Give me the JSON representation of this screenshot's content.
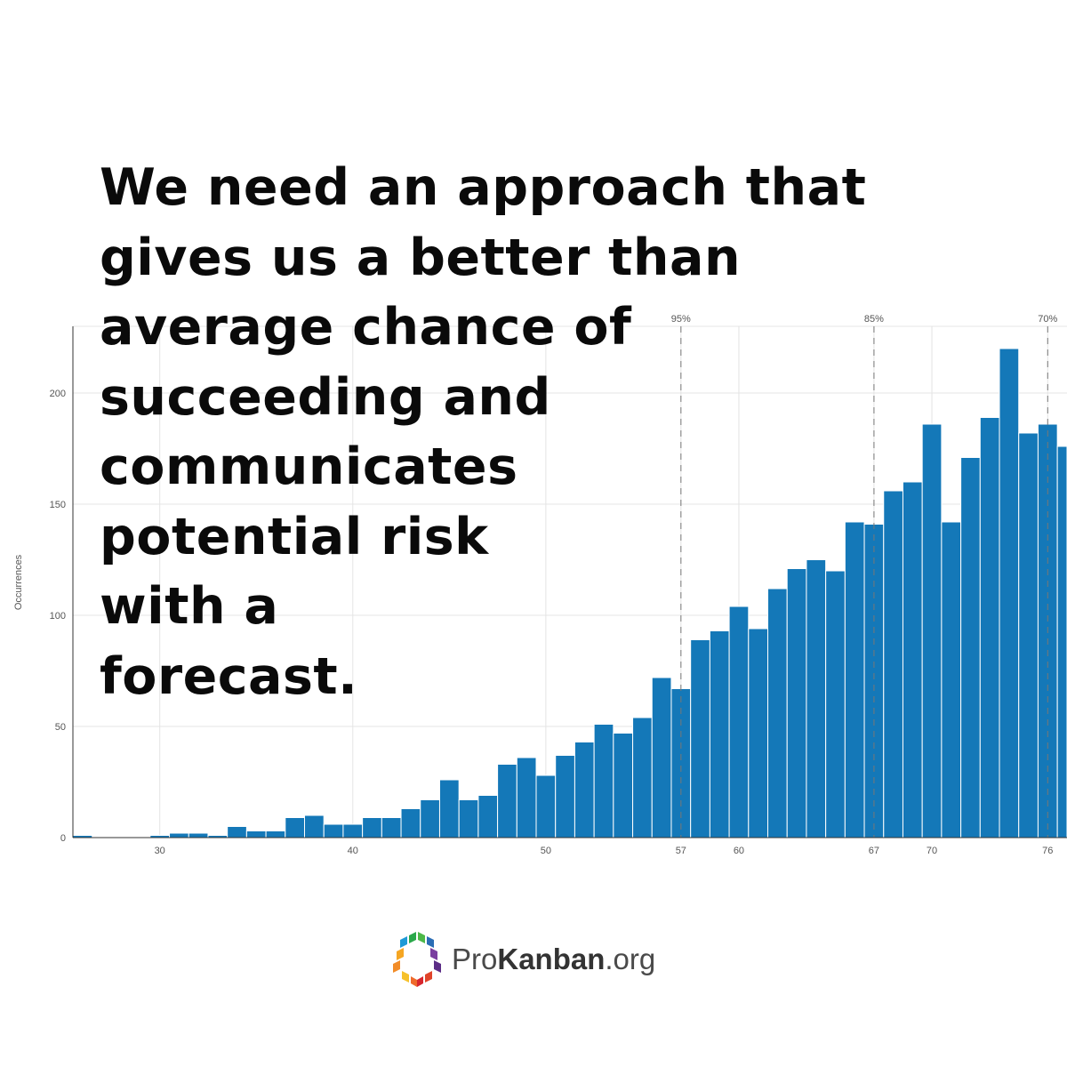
{
  "headline": {
    "lines": [
      "We need an approach that",
      "gives us a better than",
      "average chance of",
      "succeeding and",
      "communicates",
      "potential risk",
      "with a",
      "forecast."
    ]
  },
  "chart_data": {
    "type": "bar",
    "title": "",
    "xlabel": "",
    "ylabel": "Occurrences",
    "bin_width": 1,
    "x": [
      26,
      27,
      28,
      29,
      30,
      31,
      32,
      33,
      34,
      35,
      36,
      37,
      38,
      39,
      40,
      41,
      42,
      43,
      44,
      45,
      46,
      47,
      48,
      49,
      50,
      51,
      52,
      53,
      54,
      55,
      56,
      57,
      58,
      59,
      60,
      61,
      62,
      63,
      64,
      65,
      66,
      67,
      68,
      69,
      70,
      71,
      72,
      73,
      74,
      75,
      76,
      77
    ],
    "values": [
      1,
      0,
      0,
      0,
      1,
      2,
      2,
      1,
      5,
      3,
      3,
      9,
      10,
      6,
      6,
      9,
      9,
      13,
      17,
      26,
      17,
      19,
      33,
      36,
      28,
      37,
      43,
      51,
      47,
      54,
      72,
      67,
      89,
      93,
      104,
      94,
      112,
      121,
      125,
      120,
      142,
      141,
      156,
      160,
      186,
      142,
      171,
      189,
      220,
      182,
      186,
      176
    ],
    "xlim": [
      25.5,
      77
    ],
    "ylim": [
      0,
      230
    ],
    "x_ticks": [
      30,
      40,
      50,
      57,
      60,
      67,
      70,
      76
    ],
    "y_ticks": [
      0,
      50,
      100,
      150,
      200
    ],
    "percentile_markers": [
      {
        "label": "95%",
        "x": 57
      },
      {
        "label": "85%",
        "x": 67
      },
      {
        "label": "70%",
        "x": 76
      }
    ],
    "grid": true,
    "bar_color": "#1478b8"
  },
  "logo": {
    "name": "ProKanban.org",
    "text_regular": "Pro",
    "text_bold": "Kanban",
    "text_suffix": ".org",
    "icon": "prokanban-hexagon-logo-icon"
  }
}
